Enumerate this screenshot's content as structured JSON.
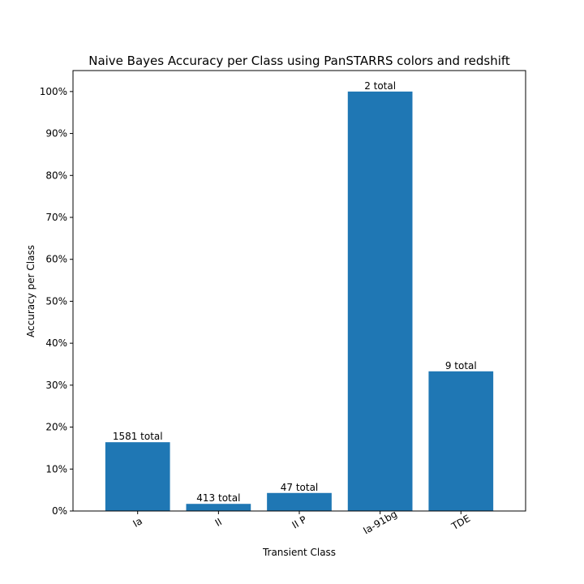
{
  "chart_data": {
    "type": "bar",
    "title": "Naive Bayes Accuracy per Class using PanSTARRS colors and redshift",
    "xlabel": "Transient Class",
    "ylabel": "Accuracy per Class",
    "categories": [
      "Ia",
      "II",
      "II P",
      "Ia-91bg",
      "TDE"
    ],
    "values": [
      16.4,
      1.7,
      4.3,
      100,
      33.3
    ],
    "bar_labels": [
      "1581 total",
      "413 total",
      "47 total",
      "2 total",
      "9 total"
    ],
    "ylim": [
      0,
      105
    ],
    "yticks": [
      0,
      10,
      20,
      30,
      40,
      50,
      60,
      70,
      80,
      90,
      100
    ],
    "ytick_labels": [
      "0%",
      "10%",
      "20%",
      "30%",
      "40%",
      "50%",
      "60%",
      "70%",
      "80%",
      "90%",
      "100%"
    ],
    "grid": false,
    "bar_color": "#1f77b4"
  }
}
